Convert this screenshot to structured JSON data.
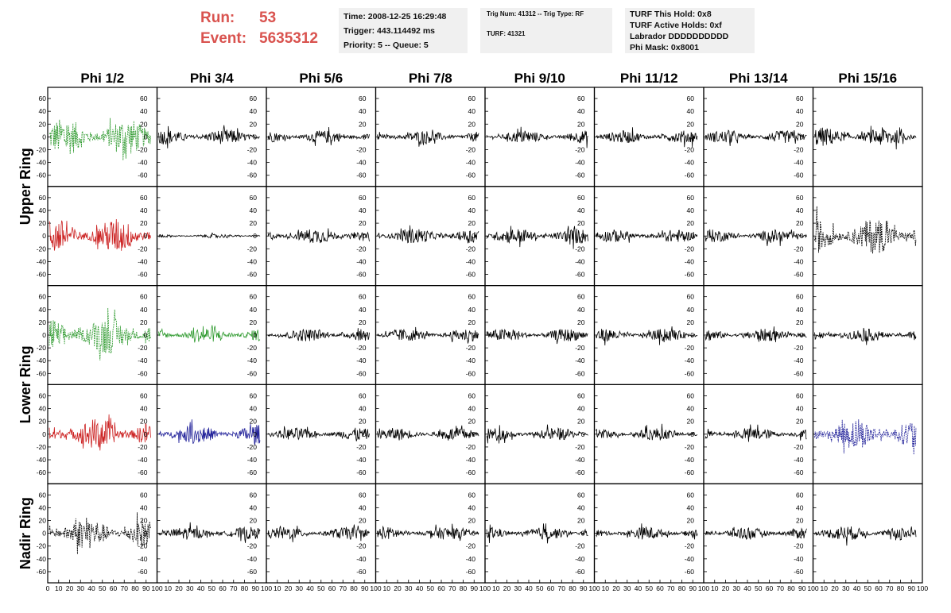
{
  "header": {
    "run_label": "Run:",
    "run_value": "53",
    "event_label": "Event:",
    "event_value": "5635312",
    "accent_color": "#d9534f"
  },
  "info_panel_1": {
    "time": "Time: 2008-12-25 16:29:48",
    "trigger": "Trigger: 443.114492 ms",
    "priority": "Priority: 5 -- Queue: 5"
  },
  "info_panel_2": {
    "trig": "Trig Num: 41312 -- Trig Type: RF",
    "turf": "TURF: 41321"
  },
  "info_panel_3": {
    "this_hold": "TURF This Hold: 0x8",
    "active_holds": "TURF Active Holds: 0xf",
    "labrador": "Labrador DDDDDDDDDD",
    "phi_mask": "Phi Mask: 0x8001"
  },
  "chart_data": {
    "type": "line",
    "columns": [
      "Phi 1/2",
      "Phi 3/4",
      "Phi 5/6",
      "Phi 7/8",
      "Phi 9/10",
      "Phi 11/12",
      "Phi 13/14",
      "Phi 15/16"
    ],
    "ring_labels": [
      "Upper Ring",
      "Lower Ring",
      "Nadir Ring"
    ],
    "xlim": [
      0,
      100
    ],
    "ylim": [
      -70,
      70
    ],
    "y_ticks": [
      -60,
      -40,
      -20,
      0,
      20,
      40,
      60
    ],
    "x_tick_labels": [
      [
        "0",
        "10",
        "20",
        "30",
        "40",
        "50",
        "60",
        "70",
        "80",
        "90",
        "100"
      ],
      [
        "10",
        "20",
        "30",
        "40",
        "50",
        "60",
        "70",
        "80",
        "90",
        "100"
      ],
      [
        "10",
        "20",
        "30",
        "40",
        "50",
        "60",
        "70",
        "80",
        "90",
        "100"
      ],
      [
        "10",
        "20",
        "30",
        "40",
        "50",
        "60",
        "70",
        "80",
        "90",
        "100"
      ],
      [
        "10",
        "20",
        "30",
        "40",
        "50",
        "60",
        "70",
        "80",
        "90",
        "100"
      ],
      [
        "10",
        "20",
        "30",
        "40",
        "50",
        "60",
        "70",
        "80",
        "90",
        "100"
      ],
      [
        "10",
        "20",
        "30",
        "40",
        "50",
        "60",
        "70",
        "80",
        "90",
        "100"
      ],
      [
        "10",
        "20",
        "30",
        "40",
        "50",
        "60",
        "70",
        "80",
        "90",
        "100"
      ]
    ],
    "rows": 5,
    "waveform_amplitude": [
      [
        30,
        12,
        10,
        10,
        10,
        10,
        10,
        15
      ],
      [
        28,
        3,
        12,
        12,
        12,
        10,
        10,
        28
      ],
      [
        30,
        12,
        10,
        10,
        10,
        10,
        10,
        10
      ],
      [
        25,
        15,
        10,
        10,
        10,
        10,
        10,
        24
      ],
      [
        25,
        10,
        10,
        10,
        10,
        10,
        10,
        12
      ]
    ],
    "trace_color": [
      [
        "#2e9a2e",
        "#000000",
        "#000000",
        "#000000",
        "#000000",
        "#000000",
        "#000000",
        "#000000"
      ],
      [
        "#cc2222",
        "#000000",
        "#000000",
        "#000000",
        "#000000",
        "#000000",
        "#000000",
        "#000000"
      ],
      [
        "#2e9a2e",
        "#2e9a2e",
        "#000000",
        "#000000",
        "#000000",
        "#000000",
        "#000000",
        "#000000"
      ],
      [
        "#cc2222",
        "#22229a",
        "#000000",
        "#000000",
        "#000000",
        "#000000",
        "#000000",
        "#22229a"
      ],
      [
        "#000000",
        "#000000",
        "#000000",
        "#000000",
        "#000000",
        "#000000",
        "#000000",
        "#000000"
      ]
    ],
    "trace_dashed": [
      [
        true,
        false,
        false,
        false,
        false,
        false,
        false,
        false
      ],
      [
        false,
        false,
        false,
        false,
        false,
        false,
        false,
        true
      ],
      [
        true,
        false,
        false,
        false,
        false,
        false,
        false,
        false
      ],
      [
        false,
        false,
        false,
        false,
        false,
        false,
        false,
        true
      ],
      [
        true,
        false,
        false,
        false,
        false,
        false,
        false,
        false
      ]
    ]
  }
}
